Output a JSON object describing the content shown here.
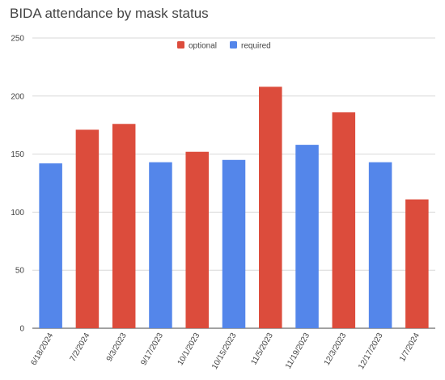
{
  "chart_data": {
    "type": "bar",
    "title": "BIDA attendance by mask status",
    "categories": [
      "6/18/2024",
      "7/2/2024",
      "9/3/2023",
      "9/17/2023",
      "10/1/2023",
      "10/15/2023",
      "11/5/2023",
      "11/19/2023",
      "12/3/2023",
      "12/17/2023",
      "1/7/2024"
    ],
    "values": [
      142,
      171,
      176,
      143,
      152,
      145,
      208,
      158,
      186,
      143,
      111
    ],
    "mask_status": [
      "required",
      "optional",
      "optional",
      "required",
      "optional",
      "required",
      "optional",
      "required",
      "optional",
      "required",
      "optional"
    ],
    "series": [
      {
        "name": "optional",
        "color": "#dc4c3c"
      },
      {
        "name": "required",
        "color": "#5486ea"
      }
    ],
    "ylim": [
      0,
      250
    ],
    "yticks": [
      0,
      50,
      100,
      150,
      200,
      250
    ],
    "xlabel": "",
    "ylabel": "",
    "grid": true,
    "legend_position": "top"
  }
}
